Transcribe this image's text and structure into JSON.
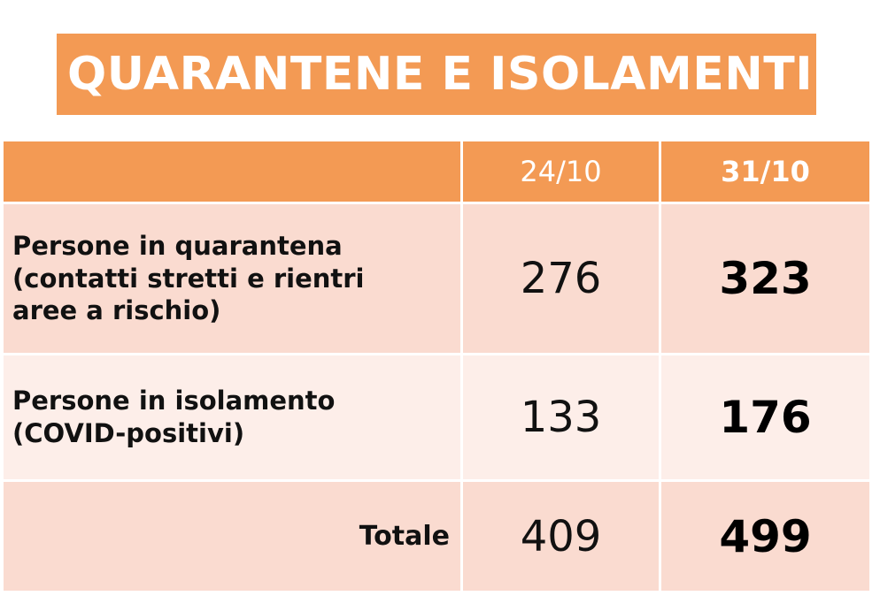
{
  "title": "QUARANTENE E ISOLAMENTI",
  "colors": {
    "accent": "#f39a54",
    "row_dark": "#fadbd0",
    "row_light": "#fdeee9"
  },
  "table": {
    "headers": [
      "",
      "24/10",
      "31/10"
    ],
    "rows": [
      {
        "label_lines": [
          "Persone in quarantena",
          "(contatti stretti e rientri",
          "aree a rischio)"
        ],
        "v1": "276",
        "v2": "323"
      },
      {
        "label_lines": [
          "Persone in isolamento",
          "(COVID-positivi)"
        ],
        "v1": "133",
        "v2": "176"
      }
    ],
    "total": {
      "label": "Totale",
      "v1": "409",
      "v2": "499"
    }
  }
}
